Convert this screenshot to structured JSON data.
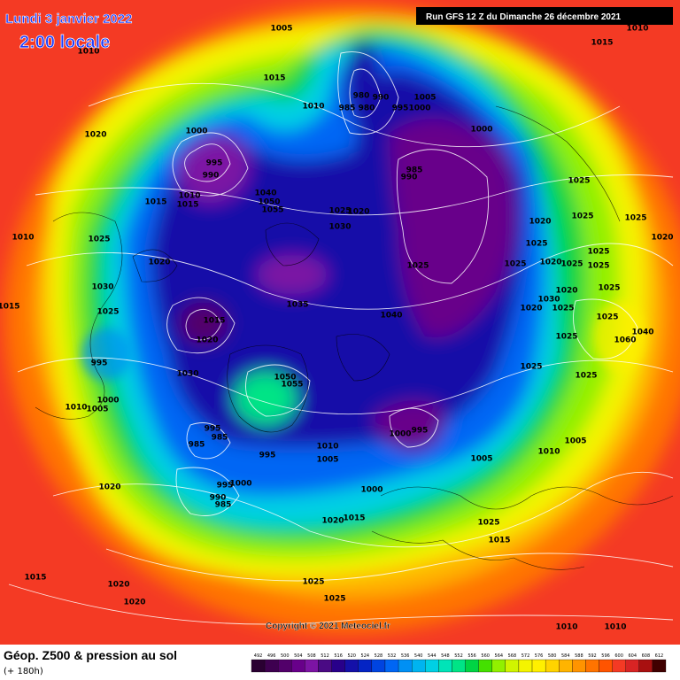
{
  "header": {
    "date": "Lundi 3 janvier 2022",
    "time": "2:00 locale",
    "run": "Run GFS 12 Z du Dimanche 26 décembre 2021",
    "copyright": "Copyright © 2021 Meteociel.fr"
  },
  "footer": {
    "title": "Géop. Z500 & pression au sol",
    "lead": "(+ 180h)"
  },
  "legend": {
    "values": [
      492,
      496,
      500,
      504,
      508,
      512,
      516,
      520,
      524,
      528,
      532,
      536,
      540,
      544,
      548,
      552,
      556,
      560,
      564,
      568,
      572,
      576,
      580,
      584,
      588,
      592,
      596,
      600,
      604,
      608,
      612
    ],
    "colors": [
      "#2a0032",
      "#3e0050",
      "#52006a",
      "#68008a",
      "#7c14a4",
      "#4a0a84",
      "#28008a",
      "#1410a8",
      "#0424c4",
      "#0044e0",
      "#0066f4",
      "#0090f4",
      "#00b4f0",
      "#00d0e4",
      "#00e4b8",
      "#00e486",
      "#00d444",
      "#44e000",
      "#92f000",
      "#d0f400",
      "#f4f400",
      "#fff000",
      "#ffd400",
      "#ffb400",
      "#ff9400",
      "#ff7400",
      "#ff5400",
      "#f43a24",
      "#d82424",
      "#a81010",
      "#400000"
    ]
  },
  "isobar_labels": [
    1005,
    1010,
    1015,
    1010,
    1020,
    1000,
    995,
    990,
    1015,
    1010,
    1015,
    1040,
    1050,
    1055,
    1025,
    1020,
    1030,
    1025,
    1010,
    1020,
    1030,
    1025,
    1015,
    1035,
    1015,
    1020,
    1040,
    1025,
    980,
    990,
    985,
    980,
    995,
    1000,
    1005,
    1000,
    985,
    990,
    1025,
    1020,
    1025,
    1025,
    1025,
    1025,
    1020,
    1025,
    1025,
    1025,
    1020,
    1020,
    1030,
    1025,
    1020,
    1025,
    1025,
    1040,
    1060,
    1025,
    1025,
    1025,
    995,
    1030,
    1050,
    1055,
    1000,
    1010,
    1005,
    995,
    985,
    985,
    995,
    1010,
    1005,
    1000,
    995,
    1005,
    1010,
    1005,
    1020,
    995,
    1000,
    990,
    985,
    1000,
    1020,
    1015,
    1025,
    1015,
    1015,
    1020,
    1020,
    1025,
    1025,
    1015,
    1010,
    1010,
    1010
  ]
}
